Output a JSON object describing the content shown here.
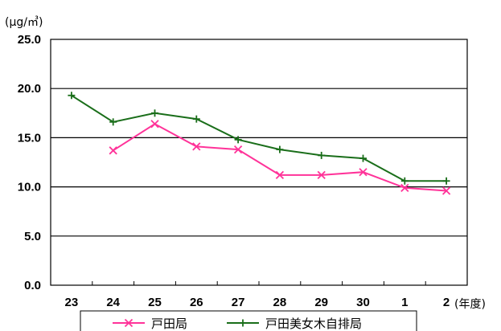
{
  "chart_data": {
    "type": "line",
    "title": "",
    "ylabel": "(μg/㎥)",
    "xlabel": "(年度)",
    "ylim": [
      0,
      25
    ],
    "yticks": [
      "0.0",
      "5.0",
      "10.0",
      "15.0",
      "20.0",
      "25.0"
    ],
    "categories": [
      "23",
      "24",
      "25",
      "26",
      "27",
      "28",
      "29",
      "30",
      "1",
      "2"
    ],
    "grid": true,
    "legend_position": "bottom",
    "series": [
      {
        "name": "戸田局",
        "color": "#ff3399",
        "marker": "x",
        "values": [
          null,
          13.7,
          16.4,
          14.1,
          13.8,
          11.2,
          11.2,
          11.5,
          9.9,
          9.6
        ]
      },
      {
        "name": "戸田美女木自排局",
        "color": "#1a6e1a",
        "marker": "+",
        "values": [
          19.3,
          16.6,
          17.5,
          16.9,
          14.8,
          13.8,
          13.2,
          12.9,
          10.6,
          10.6
        ]
      }
    ]
  }
}
